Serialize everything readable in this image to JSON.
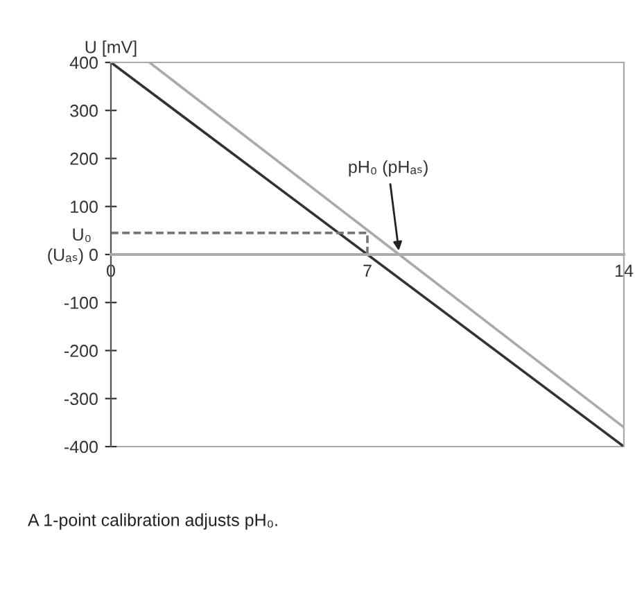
{
  "chart_data": {
    "type": "line",
    "ylabel": "U [mV]",
    "xlim": [
      0,
      14
    ],
    "xticks": [
      0,
      7,
      14
    ],
    "ylim": [
      -400,
      400
    ],
    "yticks": [
      -400,
      -300,
      -200,
      -100,
      {
        "value": 0,
        "label": "(Uₐₛ) 0"
      },
      100,
      200,
      300,
      400
    ],
    "series": [
      {
        "color": "#333333",
        "x": [
          0,
          14
        ],
        "values": [
          400,
          -400
        ]
      },
      {
        "color": "#aaaaaa",
        "x": [
          1.05,
          14
        ],
        "values": [
          400,
          -360
        ]
      },
      {
        "color": "#777777",
        "x": [
          0,
          7,
          7
        ],
        "values": [
          45,
          45,
          0
        ],
        "line_style": "dashed"
      }
    ],
    "annotations": [
      {
        "text": "pH₀ (pHₐₛ)",
        "x": 7.87,
        "y": 0
      },
      "U₀",
      "A 1-point calibration adjusts pH₀."
    ],
    "grid": false,
    "legend": false,
    "marker": "none"
  }
}
